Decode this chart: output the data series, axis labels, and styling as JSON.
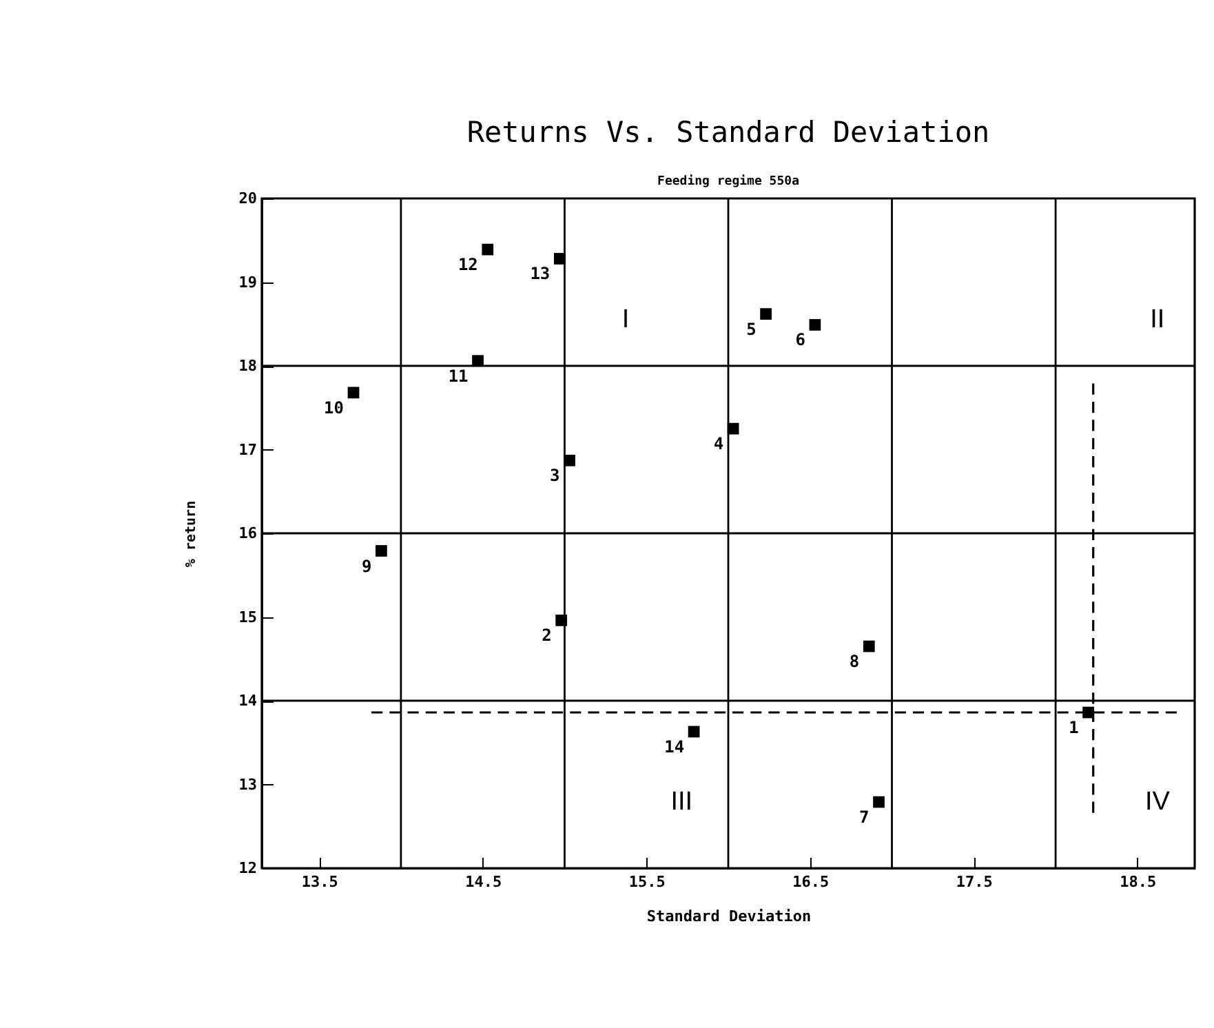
{
  "chart_data": {
    "type": "scatter",
    "title": "Returns Vs. Standard Deviation",
    "subtitle": "Feeding regime 550a",
    "xlabel": "Standard Deviation",
    "ylabel": "% return",
    "xlim": [
      13.15,
      18.85
    ],
    "xticks": [
      13.5,
      14.5,
      15.5,
      16.5,
      17.5,
      18.5
    ],
    "ylim": [
      12,
      20
    ],
    "yticks": [
      12,
      13,
      14,
      15,
      16,
      17,
      18,
      19,
      20
    ],
    "marker": "square",
    "series": [
      {
        "type": "scatter",
        "color": "#000000",
        "x": [
          18.2,
          14.98,
          15.03,
          16.03,
          16.23,
          16.53,
          16.92,
          16.86,
          13.88,
          13.71,
          14.47,
          14.53,
          14.97,
          15.79
        ],
        "values": [
          13.86,
          14.96,
          16.87,
          17.25,
          18.62,
          18.49,
          12.79,
          14.65,
          15.79,
          17.68,
          18.06,
          19.39,
          19.28,
          13.63
        ]
      },
      {
        "type": "line",
        "color": "#000000",
        "line_style": "dashed",
        "marker": "none",
        "x": [
          13.82,
          18.74
        ],
        "values": [
          13.86,
          13.86
        ]
      },
      {
        "type": "line",
        "color": "#000000",
        "line_style": "dashed",
        "marker": "none",
        "x": [
          18.23,
          18.23
        ],
        "values": [
          12.66,
          17.79
        ]
      }
    ],
    "ref_lines": [
      {
        "axis": "x",
        "value": 14,
        "color": "#000000"
      },
      {
        "axis": "x",
        "value": 15,
        "color": "#000000"
      },
      {
        "axis": "x",
        "value": 16,
        "color": "#000000"
      },
      {
        "axis": "x",
        "value": 17,
        "color": "#000000"
      },
      {
        "axis": "x",
        "value": 18,
        "color": "#000000"
      },
      {
        "axis": "y",
        "value": 14,
        "color": "#000000"
      },
      {
        "axis": "y",
        "value": 16,
        "color": "#000000"
      },
      {
        "axis": "y",
        "value": 18,
        "color": "#000000"
      }
    ],
    "annotations": [
      {
        "text": "1",
        "x": 18.2,
        "y": 13.86
      },
      {
        "text": "2",
        "x": 14.98,
        "y": 14.96
      },
      {
        "text": "3",
        "x": 15.03,
        "y": 16.87
      },
      {
        "text": "4",
        "x": 16.03,
        "y": 17.25
      },
      {
        "text": "5",
        "x": 16.23,
        "y": 18.62
      },
      {
        "text": "6",
        "x": 16.53,
        "y": 18.49
      },
      {
        "text": "7",
        "x": 16.92,
        "y": 12.79
      },
      {
        "text": "8",
        "x": 16.86,
        "y": 14.65
      },
      {
        "text": "9",
        "x": 13.88,
        "y": 15.79
      },
      {
        "text": "10",
        "x": 13.71,
        "y": 17.68
      },
      {
        "text": "11",
        "x": 14.47,
        "y": 18.06
      },
      {
        "text": "12",
        "x": 14.53,
        "y": 19.39
      },
      {
        "text": "13",
        "x": 14.97,
        "y": 19.28
      },
      {
        "text": "14",
        "x": 15.79,
        "y": 13.63
      },
      "I",
      "II",
      "III",
      "IV"
    ]
  }
}
